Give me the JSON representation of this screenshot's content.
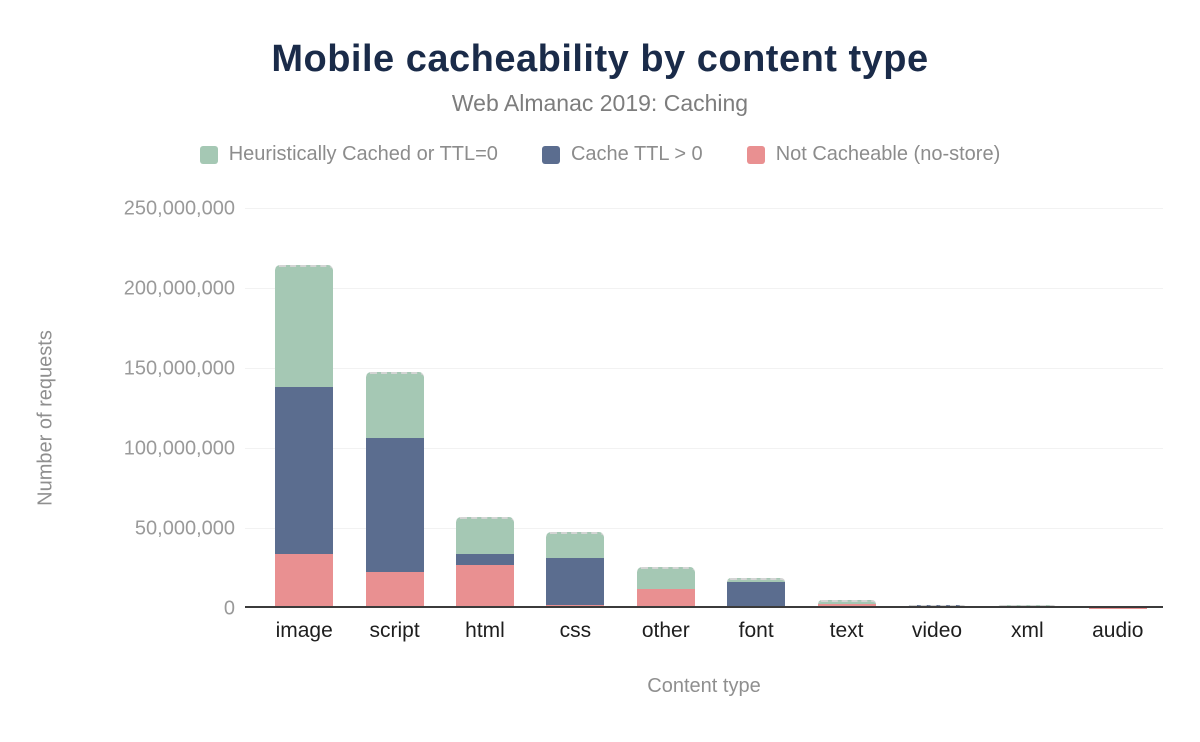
{
  "chart_data": {
    "type": "bar",
    "variant": "stacked",
    "title": "Mobile cacheability by content type",
    "subtitle": "Web Almanac 2019: Caching",
    "xlabel": "Content type",
    "ylabel": "Number of requests",
    "units": "requests (series values expressed in millions)",
    "ylim": [
      0,
      250000000
    ],
    "grid": "horizontal",
    "legend_position": "top",
    "y_ticks": [
      "250,000,000",
      "200,000,000",
      "150,000,000",
      "100,000,000",
      "50,000,000",
      "0"
    ],
    "categories": [
      "image",
      "script",
      "html",
      "css",
      "other",
      "font",
      "text",
      "video",
      "xml",
      "audio"
    ],
    "series": [
      {
        "name": "Not Cacheable (no-store)",
        "color": "#e99091",
        "values_millions": [
          34,
          22.5,
          27,
          2,
          11.8,
          0,
          2.5,
          0,
          0,
          0.1
        ]
      },
      {
        "name": "Cache TTL > 0",
        "color": "#5b6d8f",
        "values_millions": [
          104,
          84,
          7,
          29.3,
          0,
          16.2,
          0,
          1.9,
          0,
          0.1
        ]
      },
      {
        "name": "Heuristically Cached or TTL=0",
        "color": "#a5c8b4",
        "values_millions": [
          76.4,
          41.2,
          23,
          16.1,
          13.7,
          2.5,
          2.5,
          0,
          1.6,
          0.1
        ]
      }
    ],
    "legend": [
      {
        "label": "Heuristically Cached or TTL=0",
        "color": "#a5c8b4"
      },
      {
        "label": "Cache TTL > 0",
        "color": "#5b6d8f"
      },
      {
        "label": "Not Cacheable (no-store)",
        "color": "#e99091"
      }
    ]
  },
  "colors": {
    "title": "#1a2b49",
    "subtitle_text": "#7d7d7d",
    "axis_line": "#3b3b3b",
    "gridline": "#f2f2f2",
    "tick_text": "#9a9a9a",
    "category_text": "#1e1e1e",
    "background": "#ffffff"
  }
}
